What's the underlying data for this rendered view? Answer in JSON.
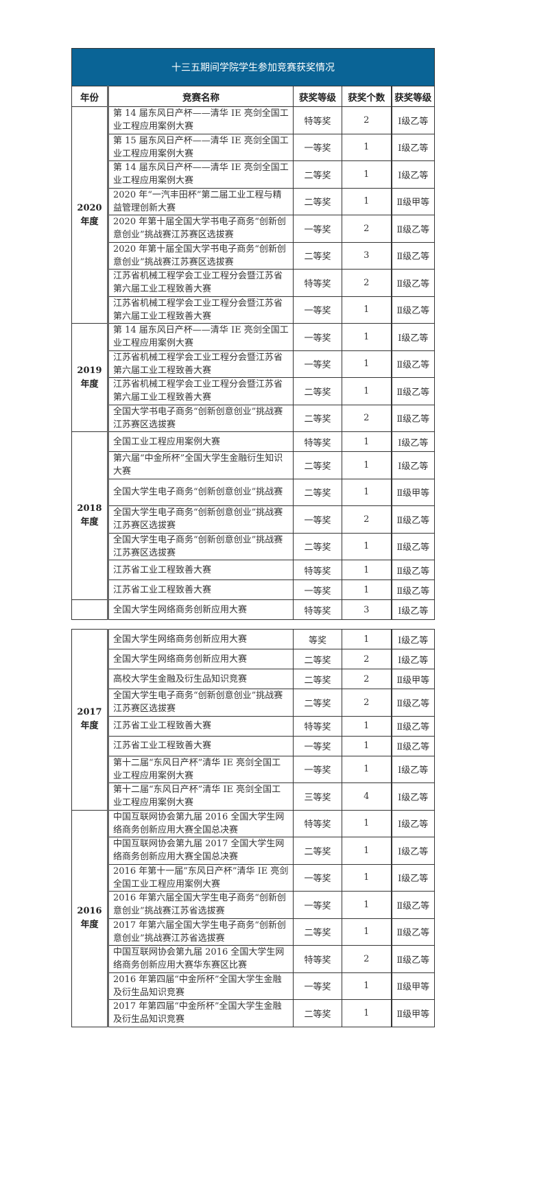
{
  "title": "十三五期间学院学生参加竞赛获奖情况",
  "headers": {
    "year": "年份",
    "name": "竞赛名称",
    "grade": "获奖等级",
    "count": "获奖个数",
    "level": "获奖等级"
  },
  "colors": {
    "title_bg": "#0a6496",
    "title_text": "#ffffff"
  },
  "tables": [
    {
      "groups": [
        {
          "year": "2020\n年度",
          "rows": [
            {
              "name": "第 14 届东风日产杯——清华 IE 亮剑全国工业工程应用案例大赛",
              "grade": "特等奖",
              "count": "2",
              "level": "Ⅰ级乙等"
            },
            {
              "name": "第 15 届东风日产杯——清华 IE 亮剑全国工业工程应用案例大赛",
              "grade": "一等奖",
              "count": "1",
              "level": "Ⅰ级乙等"
            },
            {
              "name": "第 14 届东风日产杯——清华 IE 亮剑全国工业工程应用案例大赛",
              "grade": "二等奖",
              "count": "1",
              "level": "Ⅰ级乙等"
            },
            {
              "name": "2020 年“一汽丰田杯”第二届工业工程与精益管理创新大赛",
              "grade": "二等奖",
              "count": "1",
              "level": "Ⅱ级甲等"
            },
            {
              "name": "2020 年第十届全国大学书电子商务“创新创意创业”挑战赛江苏赛区选拔赛",
              "grade": "一等奖",
              "count": "2",
              "level": "Ⅱ级乙等"
            },
            {
              "name": "2020 年第十届全国大学书电子商务“创新创意创业”挑战赛江苏赛区选拔赛",
              "grade": "二等奖",
              "count": "3",
              "level": "Ⅱ级乙等"
            },
            {
              "name": "江苏省机械工程学会工业工程分会暨江苏省第六届工业工程致善大赛",
              "grade": "特等奖",
              "count": "2",
              "level": "Ⅱ级乙等"
            },
            {
              "name": "江苏省机械工程学会工业工程分会暨江苏省第六届工业工程致善大赛",
              "grade": "一等奖",
              "count": "1",
              "level": "Ⅱ级乙等"
            }
          ]
        },
        {
          "year": "2019\n年度",
          "rows": [
            {
              "name": "第 14 届东风日产杯——清华 IE 亮剑全国工业工程应用案例大赛",
              "grade": "一等奖",
              "count": "1",
              "level": "Ⅰ级乙等"
            },
            {
              "name": "江苏省机械工程学会工业工程分会暨江苏省第六届工业工程致善大赛",
              "grade": "一等奖",
              "count": "1",
              "level": "Ⅱ级乙等"
            },
            {
              "name": "江苏省机械工程学会工业工程分会暨江苏省第六届工业工程致善大赛",
              "grade": "二等奖",
              "count": "1",
              "level": "Ⅱ级乙等"
            },
            {
              "name": "全国大学书电子商务“创新创意创业”挑战赛江苏赛区选拔赛",
              "grade": "二等奖",
              "count": "2",
              "level": "Ⅱ级乙等"
            }
          ]
        },
        {
          "year": "2018\n年度",
          "rows": [
            {
              "name": "全国工业工程应用案例大赛",
              "grade": "特等奖",
              "count": "1",
              "level": "Ⅰ级乙等",
              "single": true
            },
            {
              "name": "第六届“中金所杯”全国大学生金融衍生知识大赛",
              "grade": "二等奖",
              "count": "1",
              "level": "Ⅰ级乙等"
            },
            {
              "name": "全国大学生电子商务“创新创意创业”挑战赛",
              "grade": "二等奖",
              "count": "1",
              "level": "Ⅱ级甲等"
            },
            {
              "name": "全国大学生电子商务“创新创意创业”挑战赛江苏赛区选拔赛",
              "grade": "一等奖",
              "count": "2",
              "level": "Ⅱ级乙等"
            },
            {
              "name": "全国大学生电子商务“创新创意创业”挑战赛江苏赛区选拔赛",
              "grade": "二等奖",
              "count": "1",
              "level": "Ⅱ级乙等"
            },
            {
              "name": "江苏省工业工程致善大赛",
              "grade": "特等奖",
              "count": "1",
              "level": "Ⅱ级乙等",
              "single": true
            },
            {
              "name": "江苏省工业工程致善大赛",
              "grade": "一等奖",
              "count": "1",
              "level": "Ⅱ级乙等",
              "single": true
            }
          ]
        },
        {
          "year": "",
          "rows": [
            {
              "name": "全国大学生网络商务创新应用大赛",
              "grade": "特等奖",
              "count": "3",
              "level": "Ⅰ级乙等",
              "single": true
            }
          ]
        }
      ]
    },
    {
      "groups": [
        {
          "year": "2017\n年度",
          "rows": [
            {
              "name": "全国大学生网络商务创新应用大赛",
              "grade": "等奖",
              "count": "1",
              "level": "Ⅰ级乙等",
              "single": true
            },
            {
              "name": "全国大学生网络商务创新应用大赛",
              "grade": "二等奖",
              "count": "2",
              "level": "Ⅰ级乙等",
              "single": true
            },
            {
              "name": "高校大学生金融及衍生品知识竞赛",
              "grade": "二等奖",
              "count": "2",
              "level": "Ⅱ级甲等",
              "single": true
            },
            {
              "name": "全国大学生电子商务“创新创意创业”挑战赛江苏赛区选拔赛",
              "grade": "二等奖",
              "count": "2",
              "level": "Ⅱ级乙等"
            },
            {
              "name": "江苏省工业工程致善大赛",
              "grade": "特等奖",
              "count": "1",
              "level": "Ⅱ级乙等",
              "single": true
            },
            {
              "name": "江苏省工业工程致善大赛",
              "grade": "一等奖",
              "count": "1",
              "level": "Ⅱ级乙等",
              "single": true
            },
            {
              "name": "第十二届“东风日产杯”清华 IE 亮剑全国工业工程应用案例大赛",
              "grade": "一等奖",
              "count": "1",
              "level": "Ⅰ级乙等"
            },
            {
              "name": "第十二届“东风日产杯”清华 IE 亮剑全国工业工程应用案例大赛",
              "grade": "三等奖",
              "count": "4",
              "level": "Ⅰ级乙等"
            }
          ]
        },
        {
          "year": "2016\n年度",
          "rows": [
            {
              "name": "中国互联网协会第九届 2016 全国大学生网络商务创新应用大赛全国总决赛",
              "grade": "特等奖",
              "count": "1",
              "level": "Ⅰ级乙等"
            },
            {
              "name": "中国互联网协会第九届 2017 全国大学生网络商务创新应用大赛全国总决赛",
              "grade": "二等奖",
              "count": "1",
              "level": "Ⅰ级乙等"
            },
            {
              "name": "2016 年第十一届”东风日产杯”清华 IE 亮剑全国工业工程应用案例大赛",
              "grade": "一等奖",
              "count": "1",
              "level": "Ⅰ级乙等"
            },
            {
              "name": "2016 年第六届全国大学生电子商务“创新创意创业”挑战赛江苏省选拔赛",
              "grade": "一等奖",
              "count": "1",
              "level": "Ⅱ级乙等"
            },
            {
              "name": "2017 年第六届全国大学生电子商务“创新创意创业”挑战赛江苏省选拔赛",
              "grade": "二等奖",
              "count": "1",
              "level": "Ⅱ级乙等"
            },
            {
              "name": "中国互联网协会第九届 2016 全国大学生网络商务创新应用大赛华东赛区比赛",
              "grade": "特等奖",
              "count": "2",
              "level": "Ⅱ级乙等"
            },
            {
              "name": "2016 年第四届“中金所杯”全国大学生金融及衍生品知识竞赛",
              "grade": "一等奖",
              "count": "1",
              "level": "Ⅱ级甲等"
            },
            {
              "name": "2017 年第四届“中金所杯”全国大学生金融及衍生品知识竞赛",
              "grade": "二等奖",
              "count": "1",
              "level": "Ⅱ级甲等"
            }
          ]
        }
      ]
    }
  ]
}
